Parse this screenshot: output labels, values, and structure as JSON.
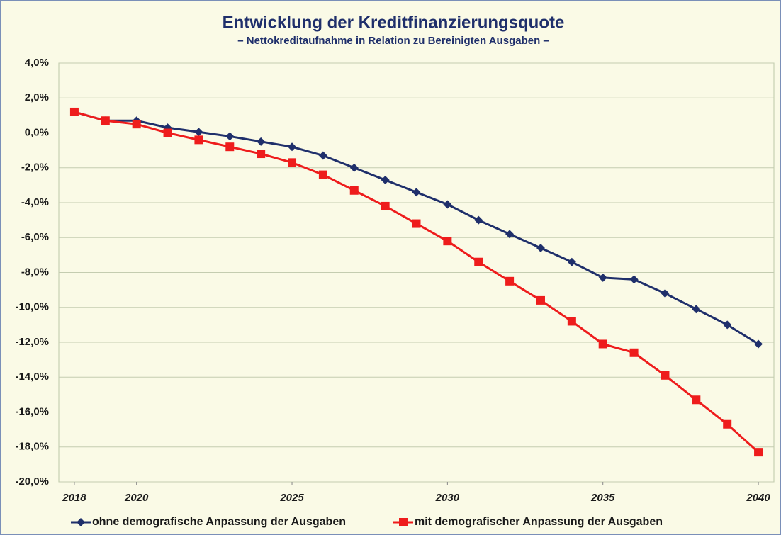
{
  "chart_data": {
    "type": "line",
    "title": "Entwicklung der Kreditfinanzierungsquote",
    "subtitle": "– Nettokreditaufnahme in Relation zu Bereinigten Ausgaben –",
    "x": [
      2018,
      2019,
      2020,
      2021,
      2022,
      2023,
      2024,
      2025,
      2026,
      2027,
      2028,
      2029,
      2030,
      2031,
      2032,
      2033,
      2034,
      2035,
      2036,
      2037,
      2038,
      2039,
      2040
    ],
    "xlim": [
      2017.5,
      2040.5
    ],
    "xticks": [
      2018,
      2020,
      2025,
      2030,
      2035,
      2040
    ],
    "ylim": [
      -20,
      4
    ],
    "yticks": [
      {
        "value": 4,
        "label": "4,0%"
      },
      {
        "value": 2,
        "label": "2,0%"
      },
      {
        "value": 0,
        "label": "0,0%"
      },
      {
        "value": -2,
        "label": "-2,0%"
      },
      {
        "value": -4,
        "label": "-4,0%"
      },
      {
        "value": -6,
        "label": "-6,0%"
      },
      {
        "value": -8,
        "label": "-8,0%"
      },
      {
        "value": -10,
        "label": "-10,0%"
      },
      {
        "value": -12,
        "label": "-12,0%"
      },
      {
        "value": -14,
        "label": "-14,0%"
      },
      {
        "value": -16,
        "label": "-16,0%"
      },
      {
        "value": -18,
        "label": "-18,0%"
      },
      {
        "value": -20,
        "label": "-20,0%"
      }
    ],
    "grid": true,
    "legend": "bottom",
    "series": [
      {
        "name": "ohne demografische Anpassung der Ausgaben",
        "color": "#1f2f6b",
        "marker": "diamond",
        "values": [
          1.2,
          0.7,
          0.7,
          0.3,
          0.05,
          -0.2,
          -0.5,
          -0.8,
          -1.3,
          -2.0,
          -2.7,
          -3.4,
          -4.1,
          -5.0,
          -5.8,
          -6.6,
          -7.4,
          -8.3,
          -8.4,
          -9.2,
          -10.1,
          -11.0,
          -12.1
        ]
      },
      {
        "name": "mit demografischer Anpassung der Ausgaben",
        "color": "#ee1c1c",
        "marker": "square",
        "values": [
          1.2,
          0.7,
          0.5,
          0.0,
          -0.4,
          -0.8,
          -1.2,
          -1.7,
          -2.4,
          -3.3,
          -4.2,
          -5.2,
          -6.2,
          -7.4,
          -8.5,
          -9.6,
          -10.8,
          -12.1,
          -12.6,
          -13.9,
          -15.3,
          -16.7,
          -18.3
        ]
      }
    ]
  }
}
